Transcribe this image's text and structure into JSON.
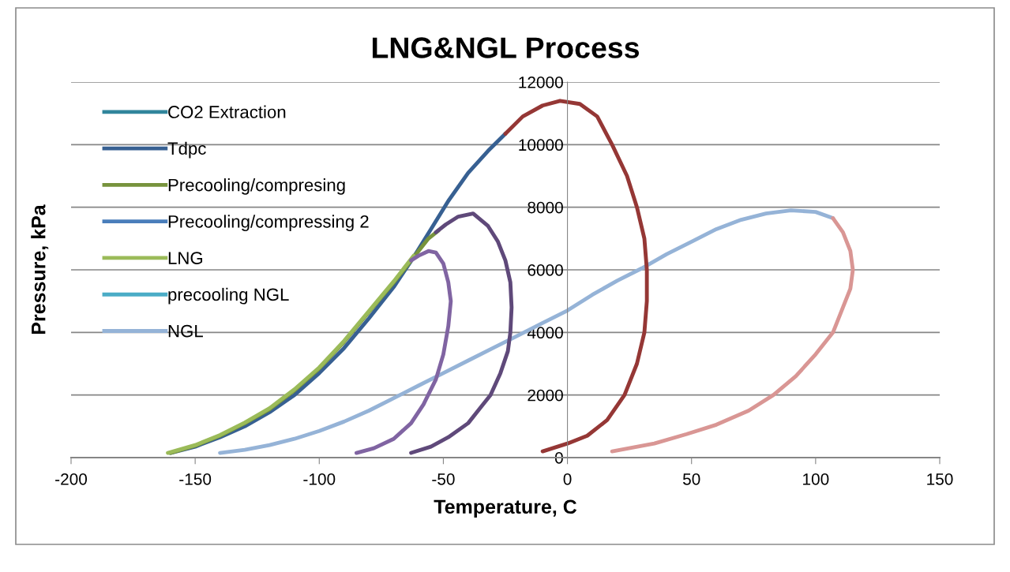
{
  "chart_data": {
    "type": "line",
    "title": "LNG&NGL Process",
    "xlabel": "Temperature, C",
    "ylabel": "Pressure, kPa",
    "xlim": [
      -200,
      150
    ],
    "xticks": [
      -200,
      -150,
      -100,
      -50,
      0,
      50,
      100,
      150
    ],
    "ylim": [
      0,
      12000
    ],
    "yticks": [
      0,
      2000,
      4000,
      6000,
      8000,
      10000,
      12000
    ],
    "grid": "y",
    "legend": "top left",
    "marker": "none",
    "line_style": "solid",
    "series": [
      {
        "name": "CO2 Extraction",
        "color": "#31859c"
      },
      {
        "name": "Tdpc",
        "color": "#376092",
        "x": [
          -160,
          -150,
          -140,
          -130,
          -120,
          -110,
          -100,
          -90,
          -80,
          -70,
          -62,
          -55,
          -48,
          -40,
          -32,
          -25
        ],
        "values": [
          150,
          350,
          650,
          1000,
          1450,
          2000,
          2700,
          3500,
          4450,
          5450,
          6400,
          7300,
          8200,
          9100,
          9800,
          10350
        ]
      },
      {
        "name": "Precooling/compresing",
        "color": "#77933c",
        "x": [
          -160,
          -150,
          -140,
          -130,
          -120,
          -110,
          -100,
          -90,
          -80,
          -70,
          -62,
          -56,
          -52
        ],
        "values": [
          150,
          380,
          700,
          1100,
          1550,
          2150,
          2850,
          3700,
          4650,
          5600,
          6400,
          7000,
          7250
        ]
      },
      {
        "name": "Precooling/compressing 2",
        "color": "#4a7ebb"
      },
      {
        "name": "LNG",
        "color": "#9bbb59",
        "x": [
          -161,
          -150,
          -140,
          -130,
          -120,
          -110,
          -100,
          -90,
          -80,
          -70,
          -62
        ],
        "values": [
          150,
          400,
          720,
          1120,
          1580,
          2180,
          2880,
          3730,
          4680,
          5630,
          6450
        ]
      },
      {
        "name": "precooling NGL",
        "color": "#4bacc6"
      },
      {
        "name": "NGL",
        "color": "#95b3d7",
        "x": [
          -140,
          -130,
          -120,
          -110,
          -100,
          -90,
          -80,
          -70,
          -60,
          -50,
          -40,
          -30,
          -20,
          -10,
          0,
          10,
          20,
          30,
          40,
          50,
          60,
          70,
          80,
          90,
          100,
          107
        ],
        "values": [
          150,
          250,
          400,
          600,
          850,
          1150,
          1500,
          1900,
          2300,
          2700,
          3100,
          3500,
          3900,
          4300,
          4700,
          5200,
          5650,
          6050,
          6500,
          6900,
          7300,
          7600,
          7800,
          7900,
          7850,
          7650
        ]
      },
      {
        "color": "#953735",
        "x": [
          -25,
          -18,
          -10,
          -3,
          5,
          12,
          18,
          24,
          28,
          31,
          32,
          32,
          31,
          28,
          23,
          16,
          8,
          0,
          -10
        ],
        "values": [
          10350,
          10900,
          11250,
          11400,
          11300,
          10900,
          10000,
          9000,
          8000,
          7000,
          6000,
          5000,
          4000,
          3000,
          2000,
          1200,
          700,
          450,
          200
        ]
      },
      {
        "color": "#d99694",
        "x": [
          107,
          111,
          114,
          115,
          114,
          111,
          107,
          100,
          92,
          83,
          73,
          60,
          48,
          35,
          18
        ],
        "values": [
          7650,
          7200,
          6600,
          6000,
          5400,
          4800,
          4000,
          3300,
          2600,
          2000,
          1500,
          1050,
          750,
          450,
          200
        ]
      },
      {
        "color": "#8064a2",
        "x": [
          -85,
          -78,
          -70,
          -63,
          -58,
          -53,
          -50,
          -48,
          -47,
          -48,
          -50,
          -53,
          -56,
          -60,
          -63
        ],
        "values": [
          150,
          300,
          600,
          1100,
          1700,
          2500,
          3300,
          4200,
          5000,
          5600,
          6200,
          6550,
          6600,
          6450,
          6300
        ]
      },
      {
        "color": "#5f497a",
        "x": [
          -63,
          -55,
          -48,
          -40,
          -35,
          -31,
          -27,
          -24,
          -23,
          -22.5,
          -23,
          -25,
          -28,
          -32,
          -38,
          -44,
          -49,
          -53
        ],
        "values": [
          150,
          350,
          650,
          1100,
          1600,
          2000,
          2700,
          3400,
          4000,
          4800,
          5600,
          6300,
          6900,
          7400,
          7800,
          7700,
          7450,
          7200
        ]
      }
    ]
  }
}
